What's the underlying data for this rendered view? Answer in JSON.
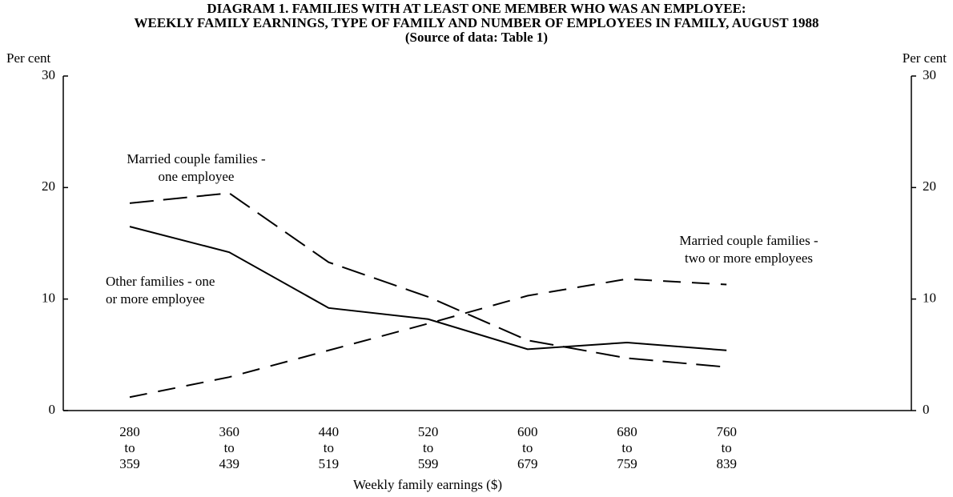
{
  "chart_data": {
    "type": "line",
    "title": [
      "DIAGRAM 1. FAMILIES WITH AT LEAST ONE MEMBER WHO WAS AN EMPLOYEE:",
      "WEEKLY FAMILY EARNINGS, TYPE OF FAMILY AND NUMBER OF EMPLOYEES IN FAMILY, AUGUST 1988",
      "(Source of data: Table 1)"
    ],
    "y_label": "Per cent",
    "y2_label": "Per cent",
    "x_label": "Weekly family earnings ($)",
    "categories": [
      [
        "280",
        "to",
        "359"
      ],
      [
        "360",
        "to",
        "439"
      ],
      [
        "440",
        "to",
        "519"
      ],
      [
        "520",
        "to",
        "599"
      ],
      [
        "600",
        "to",
        "679"
      ],
      [
        "680",
        "to",
        "759"
      ],
      [
        "760",
        "to",
        "839"
      ]
    ],
    "ylim": [
      0,
      30
    ],
    "yticks": [
      0,
      10,
      20,
      30
    ],
    "y2lim": [
      0,
      30
    ],
    "y2ticks": [
      0,
      10,
      20,
      30
    ],
    "series": [
      {
        "name": [
          "Married couple families -",
          "one employee"
        ],
        "color": "#000000",
        "line_style": "long-dash",
        "values": [
          18.6,
          19.5,
          13.3,
          10.2,
          6.3,
          4.7,
          3.9
        ]
      },
      {
        "name": [
          "Other families - one",
          "or more employee"
        ],
        "color": "#000000",
        "line_style": "solid",
        "values": [
          16.5,
          14.2,
          9.2,
          8.2,
          5.5,
          6.1,
          5.4
        ]
      },
      {
        "name": [
          "Married couple families -",
          "two or more employees"
        ],
        "color": "#000000",
        "line_style": "dashed",
        "values": [
          1.2,
          3.0,
          5.4,
          7.8,
          10.3,
          11.8,
          11.3
        ]
      }
    ]
  }
}
